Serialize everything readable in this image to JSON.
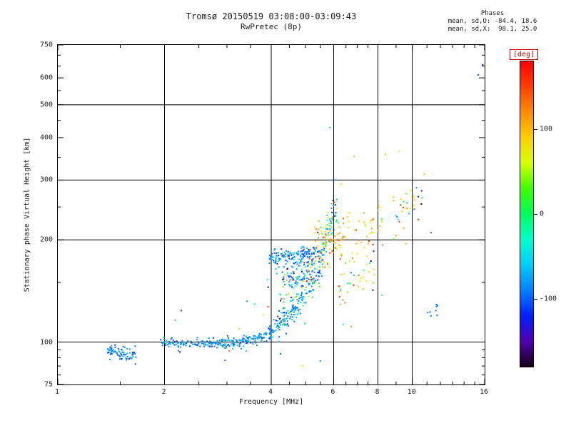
{
  "stats": {
    "header": "Phases",
    "line_o": "mean, sd,O: -84.4, 18.6",
    "line_x": "mean, sd,X:  98.1, 25.0"
  },
  "chart_data": {
    "type": "scatter",
    "title": "Tromsø 20150519 03:08:00-03:09:43",
    "subtitle": "RwPretec (8p)",
    "xlabel": "Frequency [MHz]",
    "ylabel": "Stationary phase Virtual Height [km]",
    "x_scale": "log",
    "y_scale": "log",
    "xlim": [
      1,
      16
    ],
    "ylim": [
      75,
      750
    ],
    "grid": true,
    "x_major_ticks": [
      1,
      2,
      4,
      6,
      8,
      10,
      16
    ],
    "x_tick_labels": [
      "1",
      "2",
      "4",
      "6",
      "8",
      "10",
      "16"
    ],
    "x_minor_ticks": [
      1.5,
      2.5,
      3,
      3.5,
      4.5,
      5,
      5.5,
      6.5,
      7,
      7.5,
      9,
      11,
      12,
      13,
      14,
      15
    ],
    "x_gridlines": [
      2,
      4,
      6,
      8,
      10
    ],
    "y_major_ticks": [
      75,
      100,
      200,
      300,
      400,
      500,
      600,
      750
    ],
    "y_tick_labels": [
      "75",
      "100",
      "200",
      "300",
      "400",
      "500",
      "600",
      "750"
    ],
    "y_minor_ticks": [
      80,
      85,
      90,
      95,
      150,
      250,
      350,
      450,
      550,
      650,
      700
    ],
    "y_gridlines": [
      100,
      200,
      300,
      500
    ],
    "color_dimension": "phase [deg]",
    "colorbar": {
      "label": "[deg]",
      "min": -180,
      "max": 180,
      "ticks": [
        100,
        0,
        -100
      ],
      "stops": [
        [
          180,
          "#ff0000"
        ],
        [
          150,
          "#ff4000"
        ],
        [
          120,
          "#ff8c00"
        ],
        [
          90,
          "#ffd000"
        ],
        [
          60,
          "#d8ff00"
        ],
        [
          30,
          "#40ff00"
        ],
        [
          0,
          "#00ff60"
        ],
        [
          -30,
          "#00ffcc"
        ],
        [
          -60,
          "#00ccff"
        ],
        [
          -90,
          "#0080ff"
        ],
        [
          -120,
          "#0020ff"
        ],
        [
          -150,
          "#5000b0"
        ],
        [
          -180,
          "#140014"
        ]
      ]
    },
    "point_clusters": [
      {
        "name": "e-region-blob",
        "f": [
          1.38,
          1.68
        ],
        "h": [
          95,
          91
        ],
        "hsd": 2.2,
        "n": 75,
        "phase": -88,
        "psd": 18,
        "seed": 11
      },
      {
        "name": "e-band-a",
        "f": [
          1.95,
          2.55
        ],
        "h": [
          100,
          98.5
        ],
        "hsd": 1.6,
        "n": 70,
        "phase": -86,
        "psd": 14,
        "seed": 22
      },
      {
        "name": "e-band-b",
        "f": [
          2.55,
          3.25
        ],
        "h": [
          98.5,
          100
        ],
        "hsd": 1.6,
        "n": 85,
        "phase": -85,
        "psd": 14,
        "seed": 33
      },
      {
        "name": "e-band-c",
        "f": [
          3.25,
          4.0
        ],
        "h": [
          100,
          105
        ],
        "hsd": 2.0,
        "n": 85,
        "phase": -85,
        "psd": 16,
        "seed": 44
      },
      {
        "name": "f-rise-a",
        "f": [
          3.95,
          4.65
        ],
        "h": [
          106,
          126
        ],
        "hsd": 4,
        "n": 70,
        "phase": -84,
        "psd": 18,
        "seed": 55
      },
      {
        "name": "f-rise-b",
        "f": [
          4.55,
          5.35
        ],
        "h": [
          122,
          152
        ],
        "hsd": 6,
        "n": 55,
        "phase": -80,
        "psd": 22,
        "seed": 66
      },
      {
        "name": "f-band-150",
        "f": [
          4.25,
          5.55
        ],
        "h": [
          150,
          160
        ],
        "hsd": 5,
        "n": 55,
        "phase": -84,
        "psd": 22,
        "seed": 77
      },
      {
        "name": "f-band-178",
        "f": [
          3.95,
          5.65
        ],
        "h": [
          178,
          184
        ],
        "hsd": 4,
        "n": 130,
        "phase": -85,
        "psd": 18,
        "seed": 88
      },
      {
        "name": "f-band-168",
        "f": [
          4.1,
          5.6
        ],
        "h": [
          165,
          171
        ],
        "hsd": 4,
        "n": 45,
        "phase": -80,
        "psd": 24,
        "seed": 99
      },
      {
        "name": "mixed-cloud",
        "f": [
          4.2,
          6.0
        ],
        "h": [
          125,
          190
        ],
        "hsd": 16,
        "n": 85,
        "phase": 10,
        "psd": 105,
        "seed": 101
      },
      {
        "name": "x-knot",
        "f": [
          5.3,
          6.4
        ],
        "h": [
          188,
          208
        ],
        "hsd": 16,
        "n": 75,
        "phase": 85,
        "psd": 45,
        "seed": 111
      },
      {
        "name": "cusp-spread",
        "f": [
          5.7,
          6.15
        ],
        "h": [
          205,
          255
        ],
        "hsd": 18,
        "n": 40,
        "phase": -40,
        "psd": 80,
        "seed": 121
      },
      {
        "name": "x-scatter-right",
        "f": [
          6.2,
          8.3
        ],
        "h": [
          175,
          225
        ],
        "hsd": 22,
        "n": 55,
        "phase": 92,
        "psd": 40,
        "seed": 131
      },
      {
        "name": "low-scatter-right",
        "f": [
          6.2,
          8.3
        ],
        "h": [
          140,
          165
        ],
        "hsd": 15,
        "n": 28,
        "phase": 50,
        "psd": 95,
        "seed": 141
      },
      {
        "name": "rise-far-right",
        "f": [
          8.8,
          11.0
        ],
        "h": [
          225,
          290
        ],
        "hsd": 25,
        "n": 32,
        "phase": 30,
        "psd": 110,
        "seed": 151
      },
      {
        "name": "blue-pair-11mhz",
        "f": [
          11.0,
          11.8
        ],
        "h": [
          121,
          126
        ],
        "hsd": 2.5,
        "n": 8,
        "phase": -95,
        "psd": 12,
        "seed": 161
      },
      {
        "name": "band-noise",
        "f": [
          2.0,
          5.8
        ],
        "h": [
          93,
          135
        ],
        "hsd": 22,
        "n": 22,
        "phase": 40,
        "psd": 120,
        "seed": 171
      }
    ],
    "outlier_points": [
      [
        15.8,
        655,
        -120
      ],
      [
        15.35,
        612,
        -100
      ],
      [
        5.85,
        428,
        -35
      ],
      [
        6.85,
        352,
        95
      ],
      [
        9.2,
        364,
        82
      ],
      [
        8.4,
        357,
        100
      ],
      [
        10.4,
        268,
        -150
      ],
      [
        10.15,
        262,
        98
      ],
      [
        10.6,
        255,
        -160
      ],
      [
        7.3,
        240,
        105
      ],
      [
        6.05,
        300,
        -75
      ],
      [
        6.3,
        292,
        70
      ],
      [
        11.3,
        210,
        -90
      ],
      [
        9.6,
        195,
        110
      ],
      [
        5.5,
        88,
        -80
      ],
      [
        4.9,
        85,
        60
      ]
    ]
  }
}
